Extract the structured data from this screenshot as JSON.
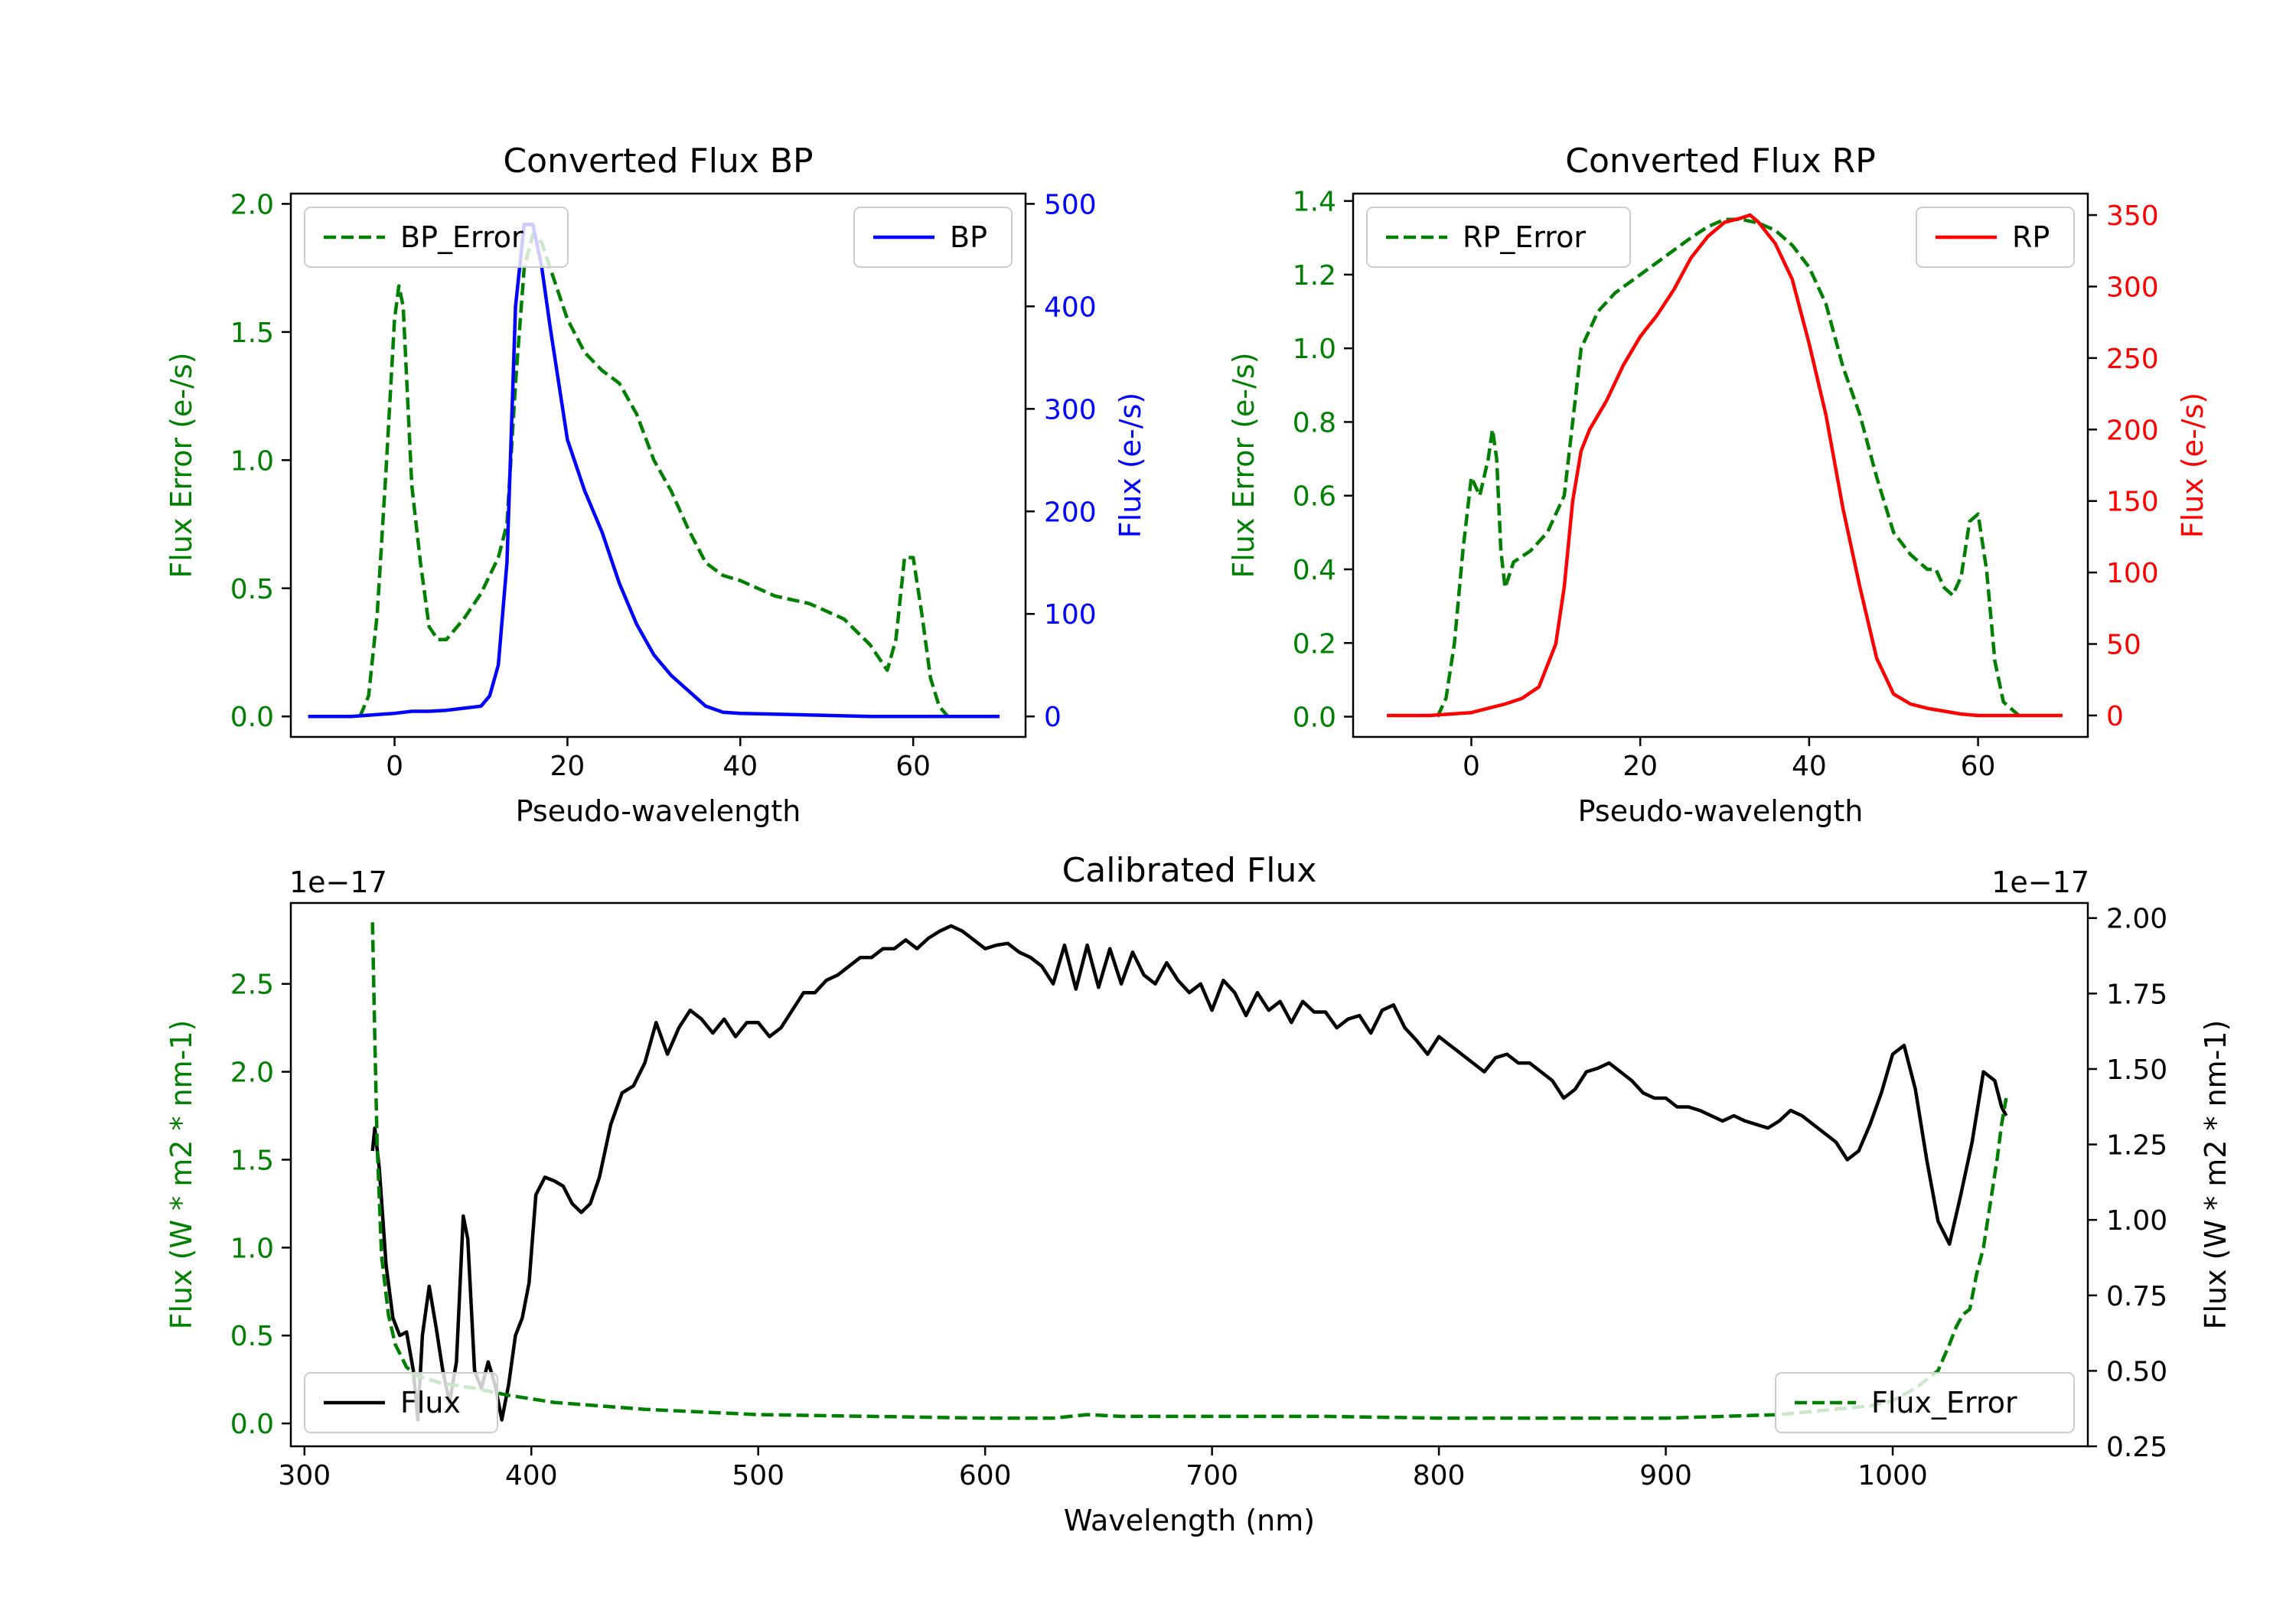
{
  "chart_data": [
    {
      "type": "line",
      "title": "Converted Flux BP",
      "xlabel": "Pseudo-wavelength",
      "ylabel_left": "Flux Error (e-/s)",
      "ylabel_right": "Flux (e-/s)",
      "xlim": [
        -12,
        73
      ],
      "ylim_left": [
        -0.08,
        2.04
      ],
      "ylim_right": [
        -20,
        510
      ],
      "xticks": [
        0,
        20,
        40,
        60
      ],
      "yticks_left": [
        0.0,
        0.5,
        1.0,
        1.5,
        2.0
      ],
      "yticks_right": [
        0,
        100,
        200,
        300,
        400,
        500
      ],
      "ytick_labels_left": [
        "0.0",
        "0.5",
        "1.0",
        "1.5",
        "2.0"
      ],
      "ytick_labels_right": [
        "0",
        "100",
        "200",
        "300",
        "400",
        "500"
      ],
      "left_color": "#008000",
      "right_color": "#0000ff",
      "series": [
        {
          "name": "BP_Error",
          "axis": "left",
          "style": "dashed",
          "color": "#008000",
          "x": [
            -4,
            -3,
            -2,
            -1,
            0,
            0.5,
            1,
            2,
            3,
            4,
            5,
            6,
            8,
            10,
            12,
            13,
            14,
            15,
            16,
            17,
            18,
            20,
            22,
            24,
            26,
            28,
            30,
            32,
            34,
            36,
            38,
            40,
            44,
            48,
            52,
            55,
            57,
            58,
            59,
            60,
            61,
            62,
            63,
            64
          ],
          "y": [
            0.0,
            0.08,
            0.4,
            0.95,
            1.55,
            1.68,
            1.6,
            0.9,
            0.6,
            0.35,
            0.3,
            0.3,
            0.38,
            0.48,
            0.62,
            0.75,
            1.3,
            1.75,
            1.88,
            1.85,
            1.75,
            1.55,
            1.42,
            1.35,
            1.3,
            1.18,
            1.0,
            0.88,
            0.73,
            0.6,
            0.55,
            0.53,
            0.47,
            0.44,
            0.38,
            0.28,
            0.18,
            0.3,
            0.62,
            0.62,
            0.4,
            0.15,
            0.04,
            0.0
          ]
        },
        {
          "name": "BP",
          "axis": "right",
          "style": "solid",
          "color": "#0000ff",
          "x": [
            -10,
            -5,
            0,
            2,
            4,
            6,
            8,
            10,
            11,
            12,
            13,
            14,
            15,
            16,
            17,
            18,
            20,
            22,
            24,
            26,
            28,
            30,
            32,
            34,
            36,
            38,
            40,
            45,
            50,
            55,
            60,
            65,
            70
          ],
          "y": [
            0,
            0,
            3,
            5,
            5,
            6,
            8,
            10,
            20,
            50,
            150,
            400,
            480,
            480,
            440,
            380,
            270,
            220,
            180,
            130,
            90,
            60,
            40,
            25,
            10,
            4,
            3,
            2,
            1,
            0,
            0,
            0,
            0
          ]
        }
      ],
      "legend": [
        {
          "label": "BP_Error",
          "position": "upper left"
        },
        {
          "label": "BP",
          "position": "upper right"
        }
      ]
    },
    {
      "type": "line",
      "title": "Converted Flux RP",
      "xlabel": "Pseudo-wavelength",
      "ylabel_left": "Flux Error (e-/s)",
      "ylabel_right": "Flux (e-/s)",
      "xlim": [
        -14,
        73
      ],
      "ylim_left": [
        -0.055,
        1.42
      ],
      "ylim_right": [
        -15,
        365
      ],
      "xticks": [
        0,
        20,
        40,
        60
      ],
      "yticks_left": [
        0.0,
        0.2,
        0.4,
        0.6,
        0.8,
        1.0,
        1.2,
        1.4
      ],
      "yticks_right": [
        0,
        50,
        100,
        150,
        200,
        250,
        300,
        350
      ],
      "ytick_labels_left": [
        "0.0",
        "0.2",
        "0.4",
        "0.6",
        "0.8",
        "1.0",
        "1.2",
        "1.4"
      ],
      "ytick_labels_right": [
        "0",
        "50",
        "100",
        "150",
        "200",
        "250",
        "300",
        "350"
      ],
      "left_color": "#008000",
      "right_color": "#ff0000",
      "series": [
        {
          "name": "RP_Error",
          "axis": "left",
          "style": "dashed",
          "color": "#008000",
          "x": [
            -4,
            -3,
            -2,
            -1,
            0,
            1,
            2,
            2.5,
            3,
            3.5,
            4,
            5,
            7,
            9,
            11,
            12,
            13,
            14,
            15,
            17,
            20,
            23,
            26,
            28,
            30,
            32,
            34,
            36,
            38,
            40,
            42,
            44,
            46,
            48,
            50,
            52,
            54,
            55,
            56,
            57,
            58,
            59,
            60,
            61,
            62,
            63,
            65
          ],
          "y": [
            0.0,
            0.05,
            0.2,
            0.45,
            0.65,
            0.6,
            0.7,
            0.78,
            0.7,
            0.45,
            0.35,
            0.42,
            0.45,
            0.5,
            0.6,
            0.8,
            1.0,
            1.05,
            1.1,
            1.15,
            1.2,
            1.25,
            1.3,
            1.33,
            1.35,
            1.35,
            1.34,
            1.32,
            1.28,
            1.22,
            1.12,
            0.95,
            0.82,
            0.65,
            0.5,
            0.44,
            0.4,
            0.4,
            0.35,
            0.33,
            0.38,
            0.53,
            0.55,
            0.4,
            0.15,
            0.04,
            0.0
          ]
        },
        {
          "name": "RP",
          "axis": "right",
          "style": "solid",
          "color": "#ff0000",
          "x": [
            -10,
            -5,
            0,
            2,
            4,
            6,
            8,
            10,
            11,
            12,
            13,
            14,
            16,
            18,
            20,
            22,
            24,
            26,
            28,
            30,
            32,
            33,
            34,
            36,
            38,
            40,
            42,
            44,
            46,
            48,
            50,
            52,
            54,
            56,
            58,
            60,
            65,
            70
          ],
          "y": [
            0,
            0,
            2,
            5,
            8,
            12,
            20,
            50,
            90,
            150,
            185,
            200,
            220,
            245,
            265,
            280,
            298,
            320,
            335,
            345,
            348,
            350,
            345,
            330,
            305,
            260,
            210,
            145,
            90,
            40,
            15,
            8,
            5,
            3,
            1,
            0,
            0,
            0
          ]
        }
      ],
      "legend": [
        {
          "label": "RP_Error",
          "position": "upper left"
        },
        {
          "label": "RP",
          "position": "upper right"
        }
      ]
    },
    {
      "type": "line",
      "title": "Calibrated Flux",
      "xlabel": "Wavelength (nm)",
      "ylabel_left": "Flux (W * m2 * nm-1)",
      "ylabel_right": "Flux (W * m2 * nm-1)",
      "offset_left": "1e−17",
      "offset_right": "1e−17",
      "xlim": [
        294,
        1086
      ],
      "ylim_left": [
        -0.13,
        2.96
      ],
      "ylim_right": [
        0.25,
        2.05
      ],
      "xticks": [
        300,
        400,
        500,
        600,
        700,
        800,
        900,
        1000
      ],
      "yticks_left": [
        0.0,
        0.5,
        1.0,
        1.5,
        2.0,
        2.5
      ],
      "yticks_right": [
        0.25,
        0.5,
        0.75,
        1.0,
        1.25,
        1.5,
        1.75,
        2.0
      ],
      "ytick_labels_left": [
        "0.0",
        "0.5",
        "1.0",
        "1.5",
        "2.0",
        "2.5"
      ],
      "ytick_labels_right": [
        "0.25",
        "0.50",
        "0.75",
        "1.00",
        "1.25",
        "1.50",
        "1.75",
        "2.00"
      ],
      "left_color": "#008000",
      "right_color": "#000000",
      "series": [
        {
          "name": "Flux",
          "axis": "left",
          "style": "solid",
          "color": "#000000",
          "x": [
            330,
            331,
            333,
            336,
            339,
            342,
            345,
            348,
            350,
            352,
            355,
            358,
            361,
            364,
            367,
            370,
            372,
            375,
            378,
            381,
            384,
            387,
            390,
            393,
            396,
            399,
            402,
            406,
            410,
            414,
            418,
            422,
            426,
            430,
            435,
            440,
            445,
            450,
            455,
            460,
            465,
            470,
            475,
            480,
            485,
            490,
            495,
            500,
            505,
            510,
            515,
            520,
            525,
            530,
            535,
            540,
            545,
            550,
            555,
            560,
            565,
            570,
            575,
            580,
            585,
            590,
            595,
            600,
            605,
            610,
            615,
            620,
            625,
            630,
            635,
            640,
            645,
            650,
            655,
            660,
            665,
            670,
            675,
            680,
            685,
            690,
            695,
            700,
            705,
            710,
            715,
            720,
            725,
            730,
            735,
            740,
            745,
            750,
            755,
            760,
            765,
            770,
            775,
            780,
            785,
            790,
            795,
            800,
            805,
            810,
            815,
            820,
            825,
            830,
            835,
            840,
            845,
            850,
            855,
            860,
            865,
            870,
            875,
            880,
            885,
            890,
            895,
            900,
            905,
            910,
            915,
            920,
            925,
            930,
            935,
            940,
            945,
            950,
            955,
            960,
            965,
            970,
            975,
            980,
            985,
            990,
            995,
            1000,
            1005,
            1010,
            1015,
            1020,
            1025,
            1030,
            1035,
            1040,
            1045,
            1048,
            1050
          ],
          "y": [
            1.55,
            1.68,
            1.45,
            0.9,
            0.6,
            0.5,
            0.52,
            0.3,
            0.02,
            0.5,
            0.78,
            0.55,
            0.3,
            0.12,
            0.35,
            1.18,
            1.05,
            0.3,
            0.2,
            0.35,
            0.22,
            0.02,
            0.22,
            0.5,
            0.6,
            0.8,
            1.3,
            1.4,
            1.38,
            1.35,
            1.25,
            1.2,
            1.25,
            1.4,
            1.7,
            1.88,
            1.92,
            2.05,
            2.28,
            2.1,
            2.25,
            2.35,
            2.3,
            2.22,
            2.3,
            2.2,
            2.28,
            2.28,
            2.2,
            2.25,
            2.35,
            2.45,
            2.45,
            2.52,
            2.55,
            2.6,
            2.65,
            2.65,
            2.7,
            2.7,
            2.75,
            2.7,
            2.76,
            2.8,
            2.83,
            2.8,
            2.75,
            2.7,
            2.72,
            2.73,
            2.68,
            2.65,
            2.6,
            2.5,
            2.72,
            2.47,
            2.72,
            2.48,
            2.7,
            2.5,
            2.68,
            2.55,
            2.5,
            2.62,
            2.52,
            2.45,
            2.5,
            2.35,
            2.52,
            2.45,
            2.32,
            2.45,
            2.35,
            2.4,
            2.28,
            2.4,
            2.34,
            2.34,
            2.25,
            2.3,
            2.32,
            2.22,
            2.35,
            2.38,
            2.25,
            2.18,
            2.1,
            2.2,
            2.15,
            2.1,
            2.05,
            2.0,
            2.08,
            2.1,
            2.05,
            2.05,
            2.0,
            1.95,
            1.85,
            1.9,
            2.0,
            2.02,
            2.05,
            2.0,
            1.95,
            1.88,
            1.85,
            1.85,
            1.8,
            1.8,
            1.78,
            1.75,
            1.72,
            1.75,
            1.72,
            1.7,
            1.68,
            1.72,
            1.78,
            1.75,
            1.7,
            1.65,
            1.6,
            1.5,
            1.55,
            1.7,
            1.88,
            2.1,
            2.15,
            1.9,
            1.5,
            1.15,
            1.02,
            1.3,
            1.6,
            2.0,
            1.95,
            1.8,
            1.75
          ]
        },
        {
          "name": "Flux_Error",
          "axis": "left",
          "style": "dashed",
          "color": "#008000",
          "x": [
            330,
            331,
            332,
            334,
            337,
            340,
            345,
            350,
            360,
            375,
            390,
            410,
            450,
            500,
            550,
            600,
            630,
            645,
            660,
            700,
            750,
            800,
            850,
            900,
            950,
            990,
            1000,
            1010,
            1015,
            1020,
            1025,
            1028,
            1031,
            1034,
            1037,
            1040,
            1043,
            1046,
            1048,
            1050
          ],
          "y": [
            2.85,
            2.2,
            1.6,
            0.95,
            0.62,
            0.45,
            0.32,
            0.27,
            0.23,
            0.2,
            0.16,
            0.12,
            0.08,
            0.05,
            0.04,
            0.03,
            0.03,
            0.05,
            0.04,
            0.04,
            0.04,
            0.03,
            0.03,
            0.03,
            0.05,
            0.1,
            0.13,
            0.2,
            0.25,
            0.3,
            0.45,
            0.55,
            0.62,
            0.65,
            0.85,
            1.0,
            1.25,
            1.5,
            1.7,
            1.85
          ]
        }
      ],
      "legend": [
        {
          "label": "Flux",
          "position": "lower left"
        },
        {
          "label": "Flux_Error",
          "position": "lower right"
        }
      ]
    }
  ]
}
